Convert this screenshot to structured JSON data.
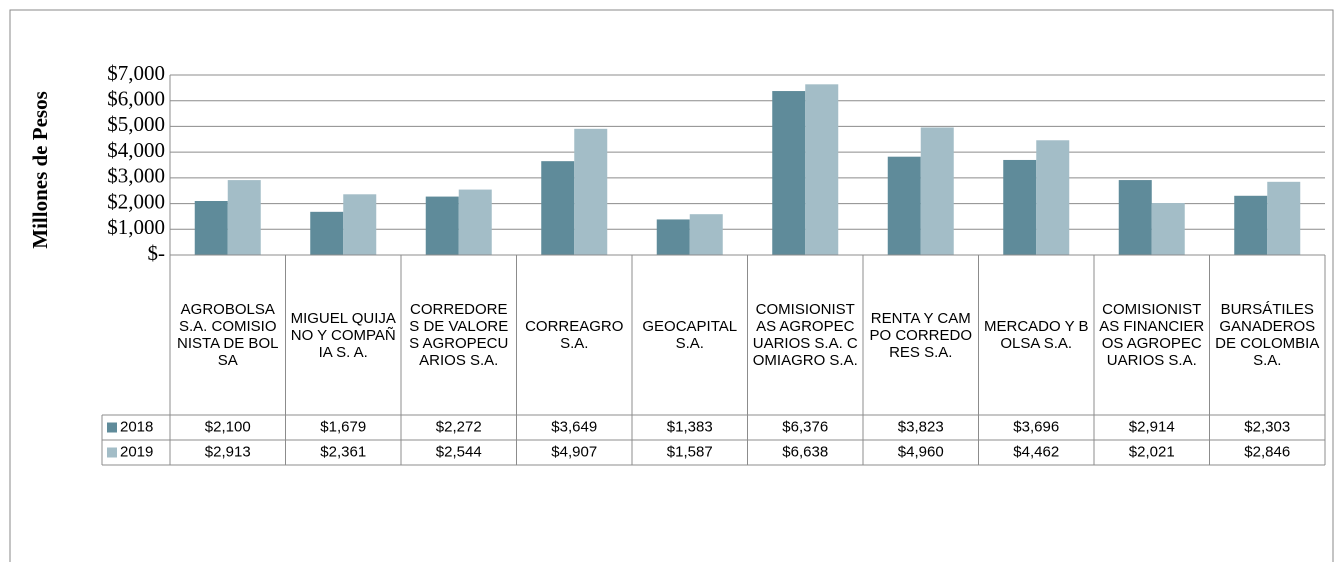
{
  "chart_data": {
    "type": "bar",
    "y_axis_label": "Millones de Pesos",
    "categories": [
      "AGROBOLSA S.A. COMISIONISTA DE BOLSA",
      "MIGUEL QUIJANO Y COMPAÑIA S. A.",
      "CORREDORES DE VALORES AGROPECUARIOS S.A.",
      "CORREAGRO S.A.",
      "GEOCAPITAL S.A.",
      "COMISIONISTAS AGROPECUARIOS S.A. COMIAGRO S.A.",
      "RENTA Y CAMPO CORREDORES S.A.",
      "MERCADO Y BOLSA S.A.",
      "COMISIONISTAS FINANCIEROS AGROPECUARIOS S.A.",
      "BURSÁTILES GANADEROS DE COLOMBIA S.A."
    ],
    "series": [
      {
        "name": "2018",
        "color": "#5f8b9a",
        "values": [
          2100,
          1679,
          2272,
          3649,
          1383,
          6376,
          3823,
          3696,
          2914,
          2303
        ],
        "value_labels": [
          "$2,100",
          "$1,679",
          "$2,272",
          "$3,649",
          "$1,383",
          "$6,376",
          "$3,823",
          "$3,696",
          "$2,914",
          "$2,303"
        ]
      },
      {
        "name": "2019",
        "color": "#a3bdc7",
        "values": [
          2913,
          2361,
          2544,
          4907,
          1587,
          6638,
          4960,
          4462,
          2021,
          2846
        ],
        "value_labels": [
          "$2,913",
          "$2,361",
          "$2,544",
          "$4,907",
          "$1,587",
          "$6,638",
          "$4,960",
          "$4,462",
          "$2,021",
          "$2,846"
        ]
      }
    ],
    "ylim": [
      0,
      7000
    ],
    "yticks": [
      {
        "value": 0,
        "label": "$-"
      },
      {
        "value": 1000,
        "label": "$1,000"
      },
      {
        "value": 2000,
        "label": "$2,000"
      },
      {
        "value": 3000,
        "label": "$3,000"
      },
      {
        "value": 4000,
        "label": "$4,000"
      },
      {
        "value": 5000,
        "label": "$5,000"
      },
      {
        "value": 6000,
        "label": "$6,000"
      },
      {
        "value": 7000,
        "label": "$7,000"
      }
    ],
    "grid": true
  }
}
